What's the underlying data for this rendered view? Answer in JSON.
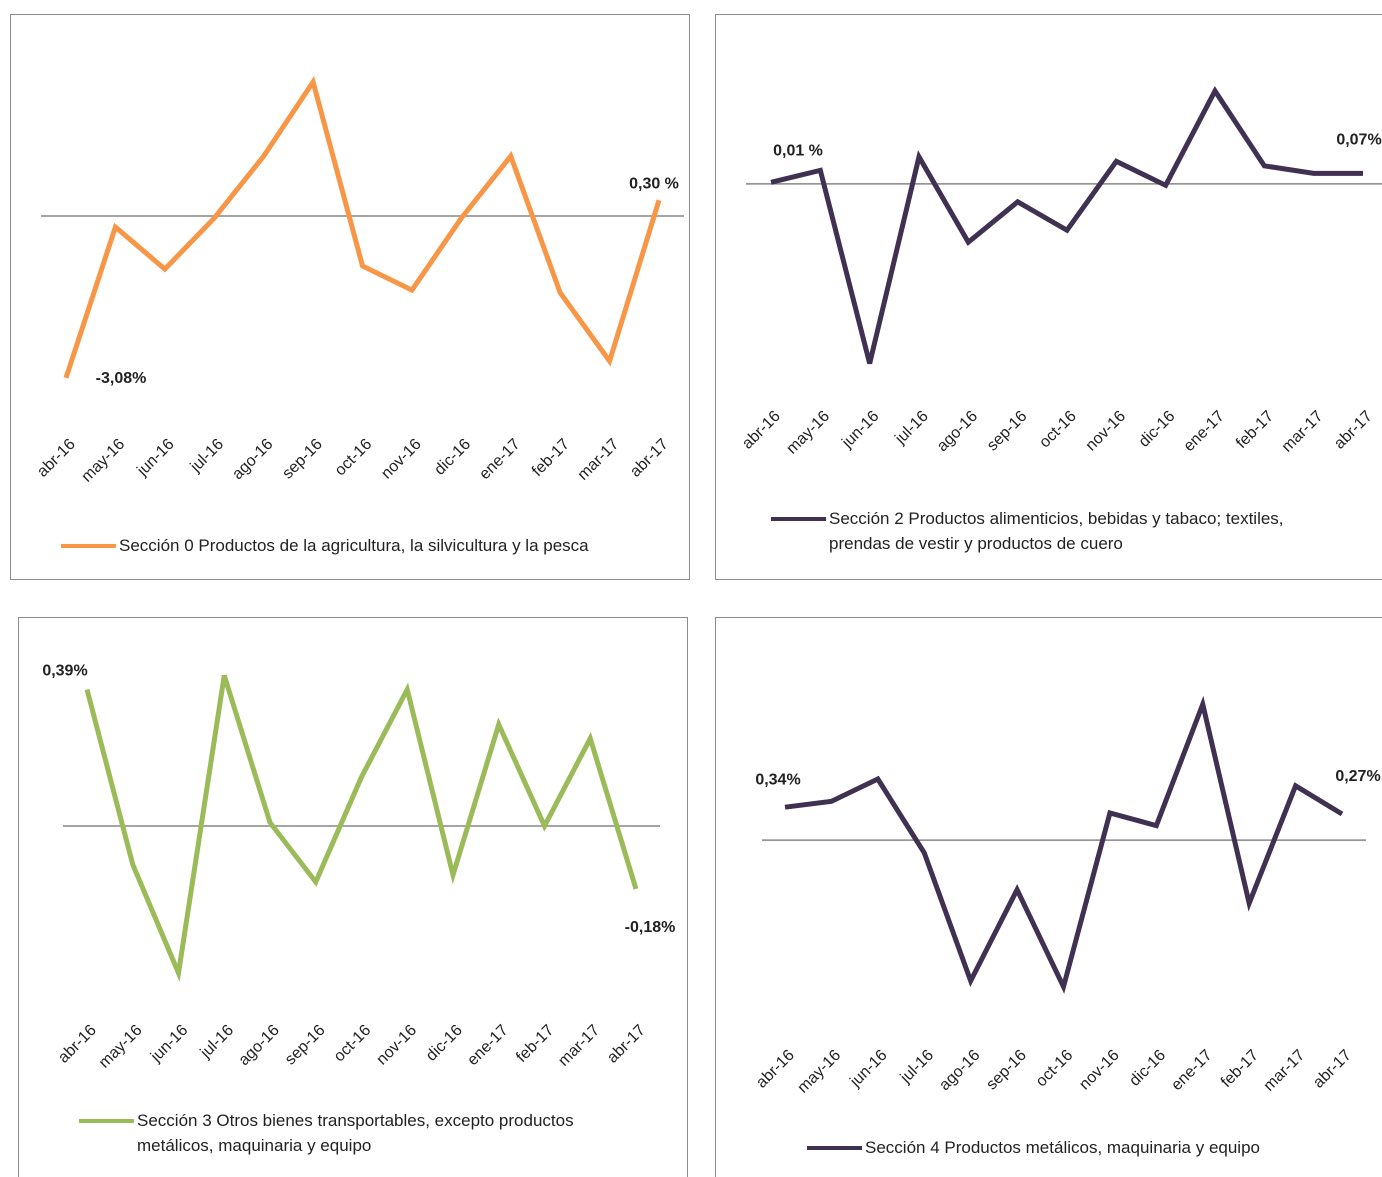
{
  "chart_data": [
    {
      "type": "line",
      "categories": [
        "abr-16",
        "may-16",
        "jun-16",
        "jul-16",
        "ago-16",
        "sep-16",
        "oct-16",
        "nov-16",
        "dic-16",
        "ene-17",
        "feb-17",
        "mar-17",
        "abr-17"
      ],
      "series": [
        {
          "name": "Sección 0 Productos de la agricultura, la silvicultura y la pesca",
          "color": "#f79646",
          "values": [
            -3.08,
            -0.21,
            -1.01,
            -0.04,
            1.14,
            2.55,
            -0.95,
            -1.41,
            -0.04,
            1.14,
            -1.46,
            -2.76,
            0.3
          ],
          "value_labels": [
            "-3,08%",
            null,
            null,
            null,
            null,
            null,
            null,
            null,
            null,
            null,
            null,
            null,
            "0,30 %"
          ]
        }
      ],
      "ylim": [
        -3.52,
        3.14
      ]
    },
    {
      "type": "line",
      "categories": [
        "abr-16",
        "may-16",
        "jun-16",
        "jul-16",
        "ago-16",
        "sep-16",
        "oct-16",
        "nov-16",
        "dic-16",
        "ene-17",
        "feb-17",
        "mar-17",
        "abr-17"
      ],
      "series": [
        {
          "name": "Sección 2 Productos alimenticios, bebidas y tabaco; textiles, prendas de vestir y productos de cuero",
          "color": "#403152",
          "values": [
            0.01,
            0.09,
            -1.2,
            0.18,
            -0.39,
            -0.12,
            -0.31,
            0.15,
            -0.01,
            0.62,
            0.12,
            0.07,
            0.07
          ],
          "value_labels": [
            "0,01 %",
            null,
            null,
            null,
            null,
            null,
            null,
            null,
            null,
            null,
            null,
            null,
            "0,07%"
          ]
        }
      ],
      "ylim": [
        -1.45,
        0.82
      ]
    },
    {
      "type": "line",
      "categories": [
        "abr-16",
        "may-16",
        "jun-16",
        "jul-16",
        "ago-16",
        "sep-16",
        "oct-16",
        "nov-16",
        "dic-16",
        "ene-17",
        "feb-17",
        "mar-17",
        "abr-17"
      ],
      "series": [
        {
          "name": "Sección 3 Otros bienes transportables, excepto productos metálicos, maquinaria y equipo",
          "color": "#9bbb59",
          "values": [
            0.39,
            -0.11,
            -0.42,
            0.43,
            0.01,
            -0.16,
            0.14,
            0.39,
            -0.14,
            0.29,
            0,
            0.25,
            -0.18
          ],
          "value_labels": [
            "0,39%",
            null,
            null,
            null,
            null,
            null,
            null,
            null,
            null,
            null,
            null,
            null,
            "-0,18%"
          ]
        }
      ],
      "ylim": [
        -0.5,
        0.5
      ]
    },
    {
      "type": "line",
      "categories": [
        "abr-16",
        "may-16",
        "jun-16",
        "jul-16",
        "ago-16",
        "sep-16",
        "oct-16",
        "nov-16",
        "dic-16",
        "ene-17",
        "feb-17",
        "mar-17",
        "abr-17"
      ],
      "series": [
        {
          "name": "Sección 4 Productos metálicos, maquinaria y equipo",
          "color": "#403152",
          "values": [
            0.34,
            0.4,
            0.63,
            -0.13,
            -1.45,
            -0.51,
            -1.51,
            0.28,
            0.15,
            1.4,
            -0.65,
            0.56,
            0.27
          ],
          "value_labels": [
            "0,34%",
            null,
            null,
            null,
            null,
            null,
            null,
            null,
            null,
            null,
            null,
            null,
            "0,27%"
          ]
        }
      ],
      "ylim": [
        -1.76,
        1.64
      ]
    }
  ]
}
